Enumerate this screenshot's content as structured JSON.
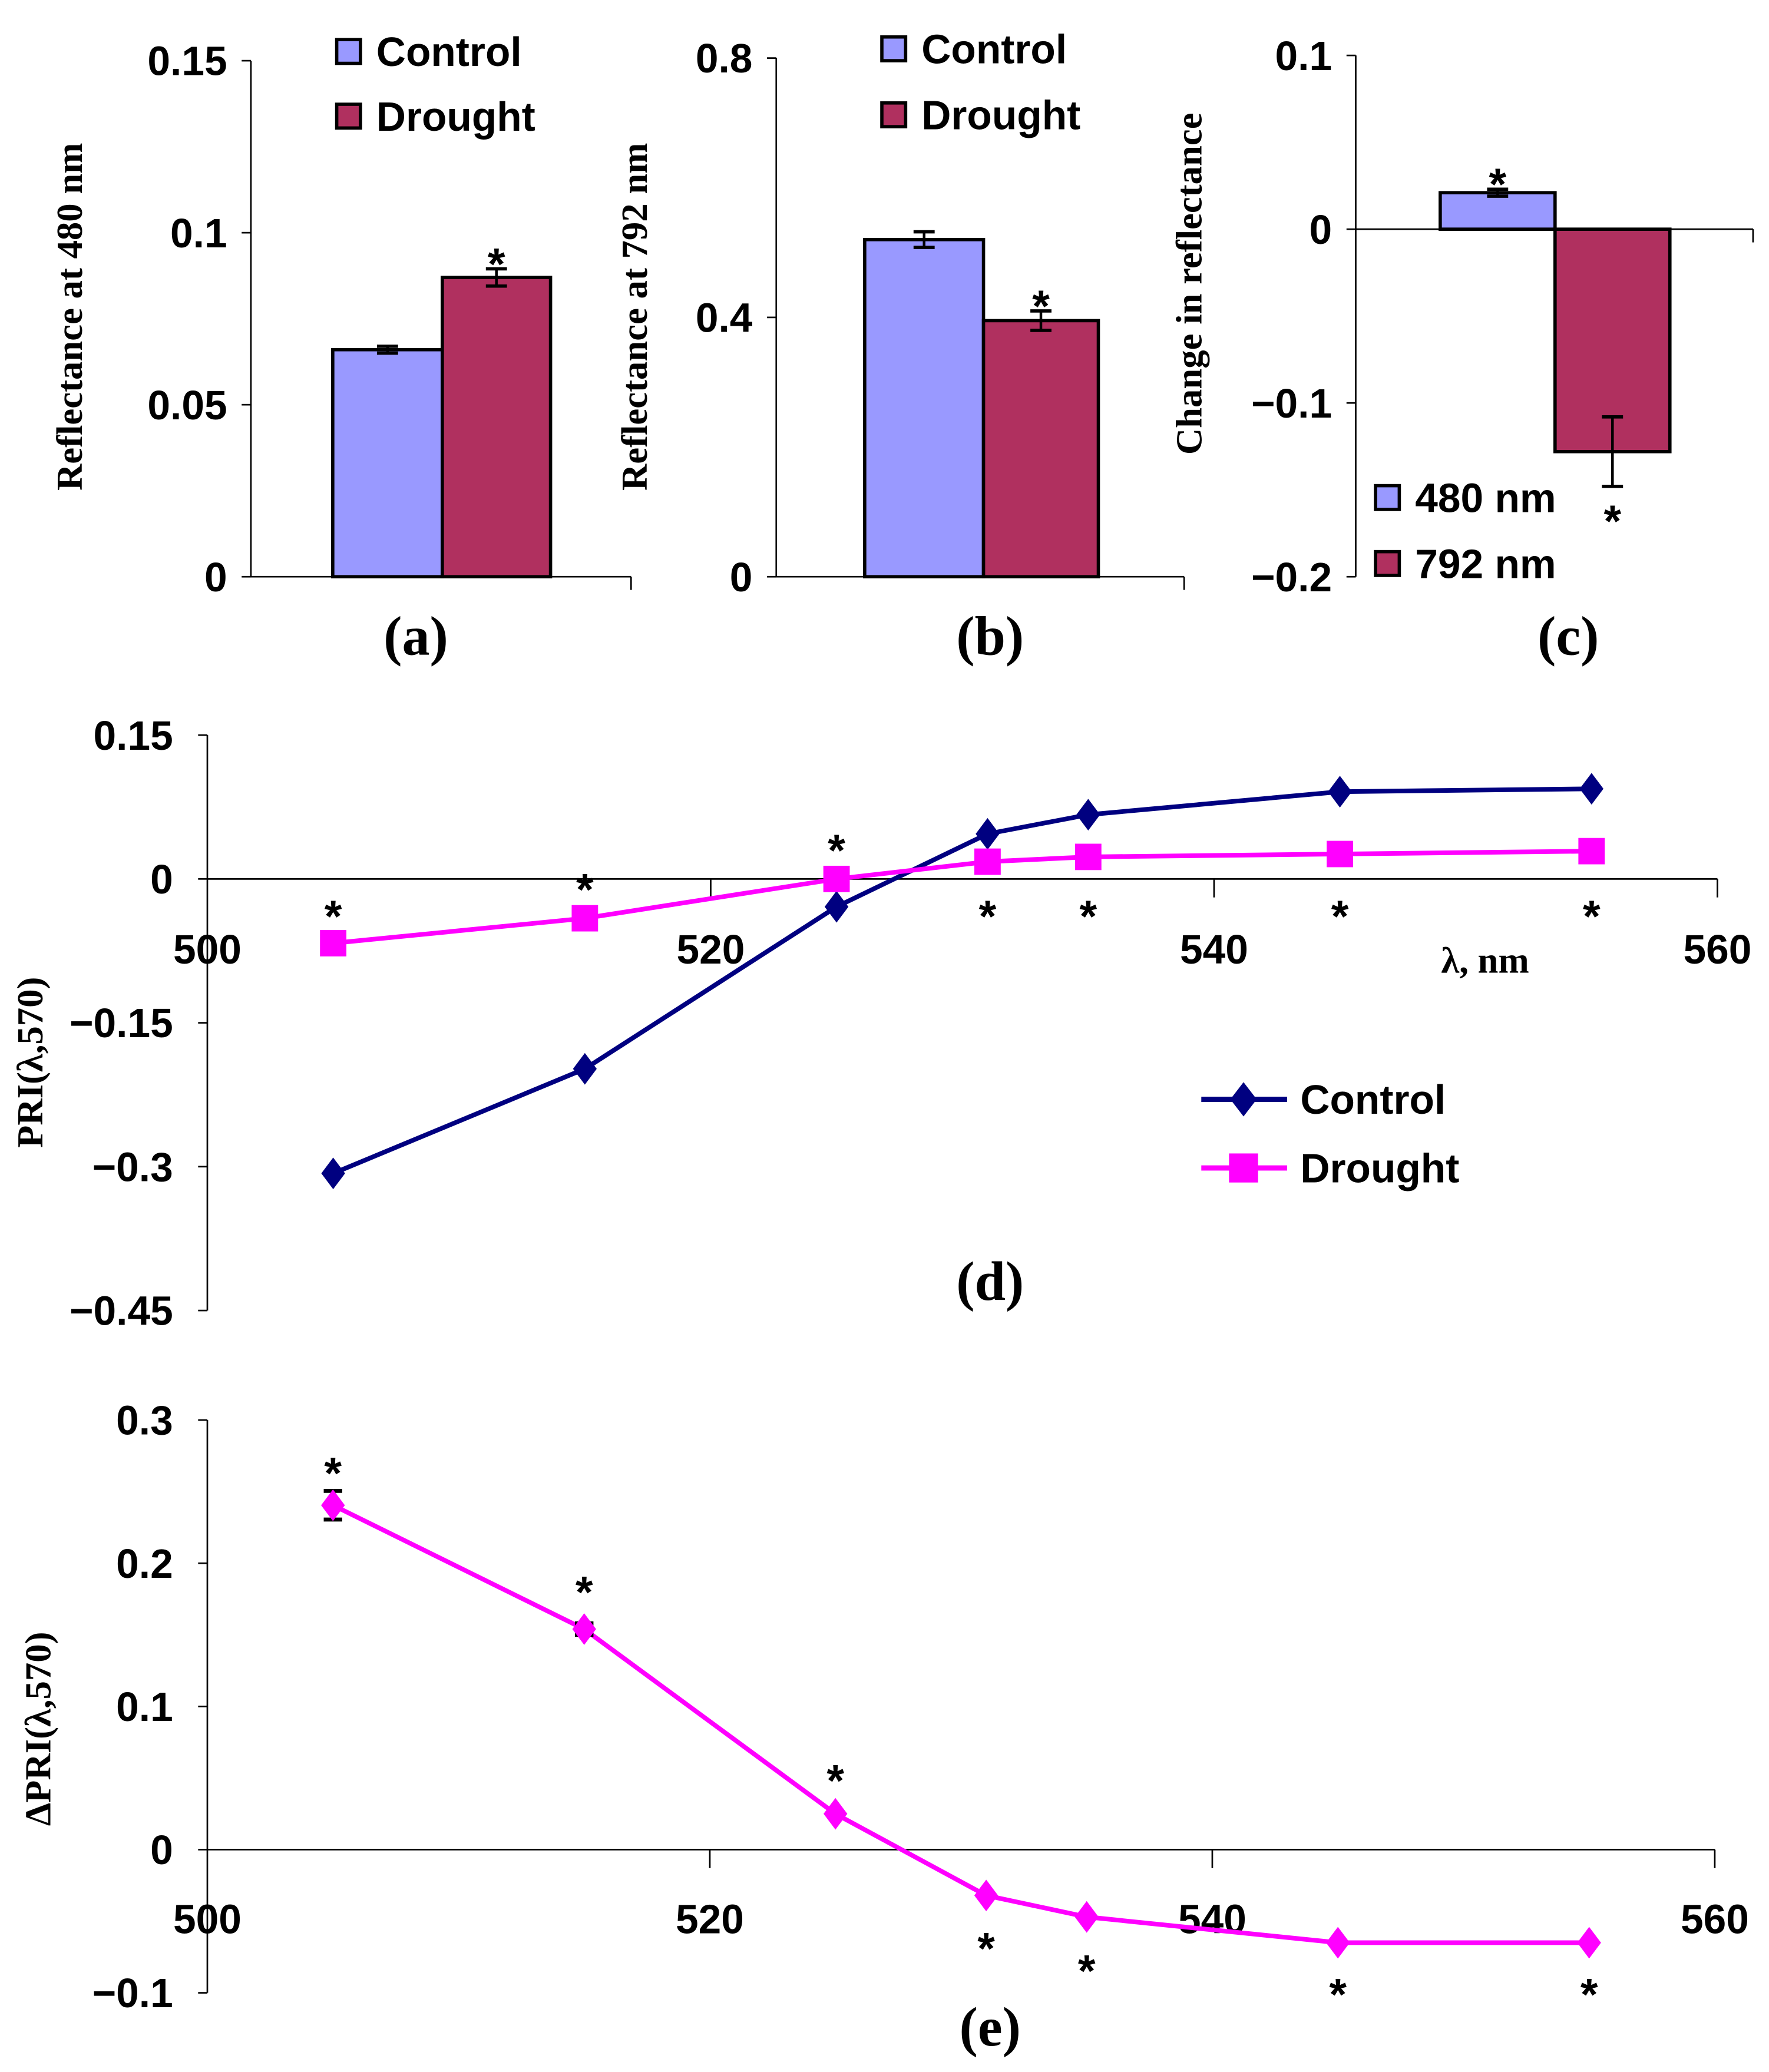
{
  "colors": {
    "control_bar": "#9999ff",
    "drought_bar": "#b0305f",
    "control_line": "#000080",
    "drought_line": "#ff00ff"
  },
  "chart_data": [
    {
      "id": "a",
      "type": "bar",
      "panel_label": "(a)",
      "ylabel": "Reflectance at 480 nm",
      "ylim": [
        0,
        0.15
      ],
      "yticks": [
        "0",
        "0.05",
        "0.1",
        "0.15"
      ],
      "ytick_values": [
        0,
        0.05,
        0.1,
        0.15
      ],
      "legend": [
        "Control",
        "Drought"
      ],
      "legend_position": "top",
      "bars": [
        {
          "name": "Control",
          "value": 0.066,
          "err": 0.001,
          "star": false
        },
        {
          "name": "Drought",
          "value": 0.087,
          "err": 0.0025,
          "star": true
        }
      ],
      "star": "*"
    },
    {
      "id": "b",
      "type": "bar",
      "panel_label": "(b)",
      "ylabel": "Reflectance at 792 nm",
      "ylim": [
        0,
        0.8
      ],
      "yticks": [
        "0",
        "0.4",
        "0.8"
      ],
      "ytick_values": [
        0,
        0.4,
        0.8
      ],
      "legend": [
        "Control",
        "Drought"
      ],
      "legend_position": "top",
      "bars": [
        {
          "name": "Control",
          "value": 0.52,
          "err": 0.012,
          "star": false
        },
        {
          "name": "Drought",
          "value": 0.395,
          "err": 0.015,
          "star": true
        }
      ],
      "star": "*"
    },
    {
      "id": "c",
      "type": "bar",
      "panel_label": "(c)",
      "ylabel": "Change in reflectance",
      "ylim": [
        -0.2,
        0.1
      ],
      "yticks": [
        "−0.2",
        "−0.1",
        "0",
        "0.1"
      ],
      "ytick_values": [
        -0.2,
        -0.1,
        0,
        0.1
      ],
      "legend": [
        "480 nm",
        "792 nm"
      ],
      "legend_position": "bottom-left",
      "bars": [
        {
          "name": "480 nm",
          "value": 0.021,
          "err": 0.002,
          "star": true
        },
        {
          "name": "792 nm",
          "value": -0.128,
          "err": 0.02,
          "star": true
        }
      ],
      "star": "*"
    },
    {
      "id": "d",
      "type": "line",
      "panel_label": "(d)",
      "ylabel": "PRI(λ,570)",
      "xlabel": "λ, nm",
      "xlim": [
        500,
        560
      ],
      "ylim": [
        -0.45,
        0.15
      ],
      "xticks": [
        "500",
        "520",
        "540",
        "560"
      ],
      "xtick_values": [
        500,
        520,
        540,
        560
      ],
      "yticks": [
        "−0.45",
        "−0.3",
        "−0.15",
        "0",
        "0.15"
      ],
      "ytick_values": [
        -0.45,
        -0.3,
        -0.15,
        0,
        0.15
      ],
      "x": [
        505,
        515,
        525,
        531,
        535,
        545,
        555
      ],
      "series": [
        {
          "name": "Control",
          "marker": "diamond",
          "values": [
            -0.307,
            -0.198,
            -0.029,
            0.047,
            0.067,
            0.091,
            0.094
          ]
        },
        {
          "name": "Drought",
          "marker": "square",
          "values": [
            -0.067,
            -0.041,
            0.0,
            0.018,
            0.023,
            0.026,
            0.029
          ]
        }
      ],
      "significance": [
        "*",
        "*",
        "*",
        "*",
        "*",
        "*",
        "*"
      ],
      "legend_position": "center-right"
    },
    {
      "id": "e",
      "type": "line",
      "panel_label": "(e)",
      "ylabel": "ΔPRI(λ,570)",
      "xlim": [
        500,
        560
      ],
      "ylim": [
        -0.1,
        0.3
      ],
      "xticks": [
        "500",
        "520",
        "540",
        "560"
      ],
      "xtick_values": [
        500,
        520,
        540,
        560
      ],
      "yticks": [
        "−0.1",
        "0",
        "0.1",
        "0.2",
        "0.3"
      ],
      "ytick_values": [
        -0.1,
        0,
        0.1,
        0.2,
        0.3
      ],
      "x": [
        505,
        515,
        525,
        531,
        535,
        545,
        555
      ],
      "series": [
        {
          "name": "ΔPRI",
          "marker": "diamond",
          "values": [
            0.2405,
            0.154,
            0.025,
            -0.032,
            -0.047,
            -0.065,
            -0.065
          ],
          "err": [
            0.01,
            0.004,
            0,
            0,
            0,
            0,
            0
          ]
        }
      ],
      "significance": [
        "*",
        "*",
        "*",
        "*",
        "*",
        "*",
        "*"
      ]
    }
  ]
}
